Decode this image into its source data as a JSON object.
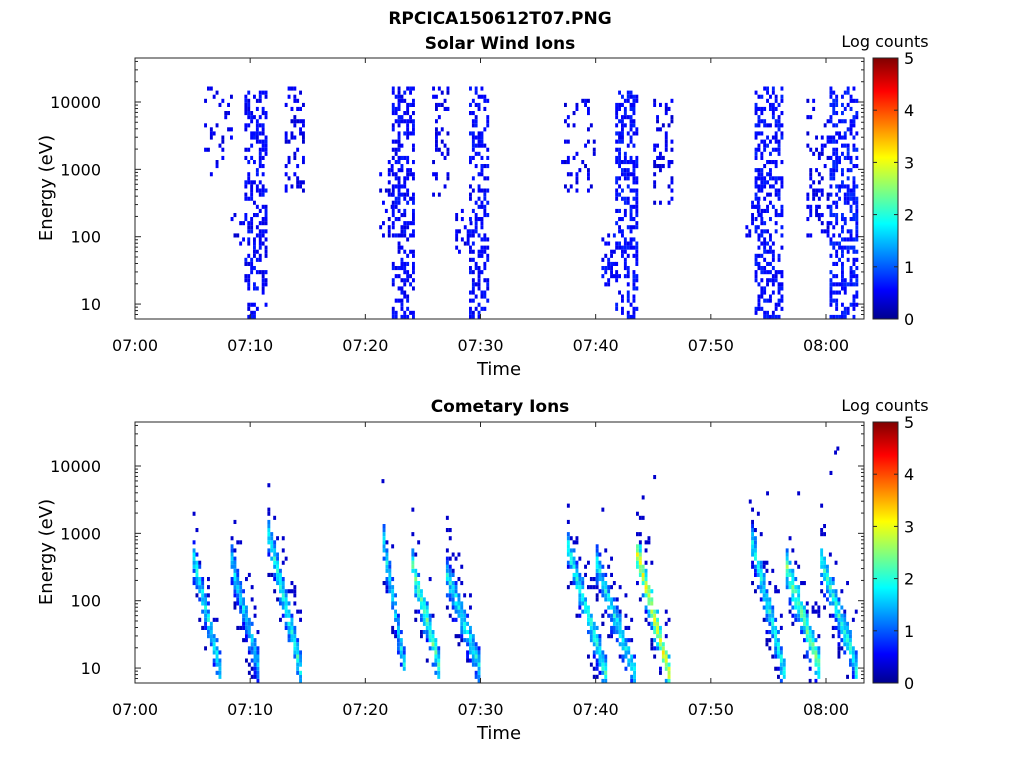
{
  "figure": {
    "title": "RPCICA150612T07.PNG"
  },
  "chart_data": [
    {
      "type": "heatmap",
      "title": "Solar Wind Ions",
      "xlabel": "Time",
      "ylabel": "Energy (eV)",
      "x_ticks": [
        "07:00",
        "07:10",
        "07:20",
        "07:30",
        "07:40",
        "07:50",
        "08:00"
      ],
      "x_tick_minutes": [
        0,
        10,
        20,
        30,
        40,
        50,
        60
      ],
      "xlim_minutes": [
        0,
        63.3
      ],
      "y_scale": "log",
      "y_ticks": [
        "10",
        "100",
        "1000",
        "10000"
      ],
      "y_tick_values": [
        10,
        100,
        1000,
        10000
      ],
      "ylim": [
        6,
        45000
      ],
      "colorbar_label": "Log counts",
      "colorbar_ticks": [
        "0",
        "1",
        "2",
        "3",
        "4",
        "5"
      ],
      "clim": [
        0,
        5
      ],
      "colormap": "jet",
      "bursts": [
        {
          "start_min": 6.0,
          "end_min": 8.5,
          "e_min": 800,
          "e_max": 15000,
          "level": 0.3,
          "density": 0.35
        },
        {
          "start_min": 8.3,
          "end_min": 9.5,
          "e_min": 80,
          "e_max": 200,
          "level": 0.3,
          "density": 0.4
        },
        {
          "start_min": 9.5,
          "end_min": 11.3,
          "e_min": 6,
          "e_max": 14000,
          "level": 0.4,
          "density": 0.75
        },
        {
          "start_min": 13.0,
          "end_min": 14.6,
          "e_min": 500,
          "e_max": 16000,
          "level": 0.3,
          "density": 0.55
        },
        {
          "start_min": 21.2,
          "end_min": 22.3,
          "e_min": 100,
          "e_max": 1200,
          "level": 0.3,
          "density": 0.3
        },
        {
          "start_min": 22.3,
          "end_min": 24.3,
          "e_min": 6,
          "e_max": 15000,
          "level": 0.4,
          "density": 0.8
        },
        {
          "start_min": 25.8,
          "end_min": 27.3,
          "e_min": 400,
          "e_max": 16000,
          "level": 0.3,
          "density": 0.45
        },
        {
          "start_min": 27.8,
          "end_min": 29.3,
          "e_min": 60,
          "e_max": 250,
          "level": 0.3,
          "density": 0.45
        },
        {
          "start_min": 29.0,
          "end_min": 30.6,
          "e_min": 6,
          "e_max": 15000,
          "level": 0.4,
          "density": 0.8
        },
        {
          "start_min": 37.0,
          "end_min": 39.8,
          "e_min": 500,
          "e_max": 10000,
          "level": 0.3,
          "density": 0.3
        },
        {
          "start_min": 40.5,
          "end_min": 41.7,
          "e_min": 20,
          "e_max": 100,
          "level": 0.4,
          "density": 0.6
        },
        {
          "start_min": 41.7,
          "end_min": 43.5,
          "e_min": 6,
          "e_max": 14000,
          "level": 0.45,
          "density": 0.85
        },
        {
          "start_min": 45.0,
          "end_min": 46.6,
          "e_min": 300,
          "e_max": 10000,
          "level": 0.3,
          "density": 0.45
        },
        {
          "start_min": 53.0,
          "end_min": 54.3,
          "e_min": 100,
          "e_max": 300,
          "level": 0.4,
          "density": 0.45
        },
        {
          "start_min": 53.8,
          "end_min": 56.2,
          "e_min": 6,
          "e_max": 15000,
          "level": 0.45,
          "density": 0.8
        },
        {
          "start_min": 58.3,
          "end_min": 60.3,
          "e_min": 100,
          "e_max": 10000,
          "level": 0.3,
          "density": 0.4
        },
        {
          "start_min": 60.3,
          "end_min": 62.8,
          "e_min": 6,
          "e_max": 15000,
          "level": 0.5,
          "density": 0.8
        }
      ]
    },
    {
      "type": "heatmap",
      "title": "Cometary Ions",
      "xlabel": "Time",
      "ylabel": "Energy (eV)",
      "x_ticks": [
        "07:00",
        "07:10",
        "07:20",
        "07:30",
        "07:40",
        "07:50",
        "08:00"
      ],
      "x_tick_minutes": [
        0,
        10,
        20,
        30,
        40,
        50,
        60
      ],
      "xlim_minutes": [
        0,
        63.3
      ],
      "y_scale": "log",
      "y_ticks": [
        "10",
        "100",
        "1000",
        "10000"
      ],
      "y_tick_values": [
        10,
        100,
        1000,
        10000
      ],
      "ylim": [
        6,
        45000
      ],
      "colorbar_label": "Log counts",
      "colorbar_ticks": [
        "0",
        "1",
        "2",
        "3",
        "4",
        "5"
      ],
      "clim": [
        0,
        5
      ],
      "colormap": "jet",
      "dispersions": [
        {
          "start_min": 5.0,
          "end_min": 7.5,
          "e_top": 400,
          "e_bottom": 6,
          "peak_level": 1.8
        },
        {
          "start_min": 8.3,
          "end_min": 10.8,
          "e_top": 350,
          "e_bottom": 8,
          "peak_level": 1.7
        },
        {
          "start_min": 11.5,
          "end_min": 14.5,
          "e_top": 1000,
          "e_bottom": 6,
          "peak_level": 2.0
        },
        {
          "start_min": 21.5,
          "end_min": 23.5,
          "e_top": 700,
          "e_bottom": 6,
          "peak_level": 1.7
        },
        {
          "start_min": 24.0,
          "end_min": 26.5,
          "e_top": 300,
          "e_bottom": 8,
          "peak_level": 2.2
        },
        {
          "start_min": 27.0,
          "end_min": 30.0,
          "e_top": 250,
          "e_bottom": 8,
          "peak_level": 1.8
        },
        {
          "start_min": 37.5,
          "end_min": 41.0,
          "e_top": 600,
          "e_bottom": 6,
          "peak_level": 2.0
        },
        {
          "start_min": 40.0,
          "end_min": 43.5,
          "e_top": 350,
          "e_bottom": 6,
          "peak_level": 1.8
        },
        {
          "start_min": 43.5,
          "end_min": 46.5,
          "e_top": 500,
          "e_bottom": 6,
          "peak_level": 3.0
        },
        {
          "start_min": 53.5,
          "end_min": 56.5,
          "e_top": 700,
          "e_bottom": 6,
          "peak_level": 1.9
        },
        {
          "start_min": 56.5,
          "end_min": 59.5,
          "e_top": 300,
          "e_bottom": 8,
          "peak_level": 2.4
        },
        {
          "start_min": 59.5,
          "end_min": 62.7,
          "e_top": 400,
          "e_bottom": 8,
          "peak_level": 2.0
        }
      ],
      "sparse_points": [
        {
          "t_min": 21.4,
          "energy": 5800
        },
        {
          "t_min": 40.5,
          "energy": 2200
        },
        {
          "t_min": 44.0,
          "energy": 3600
        },
        {
          "t_min": 45.0,
          "energy": 6500
        },
        {
          "t_min": 53.3,
          "energy": 2800
        },
        {
          "t_min": 54.8,
          "energy": 4200
        },
        {
          "t_min": 57.5,
          "energy": 3800
        },
        {
          "t_min": 60.3,
          "energy": 8000
        },
        {
          "t_min": 60.7,
          "energy": 15000
        },
        {
          "t_min": 60.9,
          "energy": 17000
        }
      ]
    }
  ]
}
